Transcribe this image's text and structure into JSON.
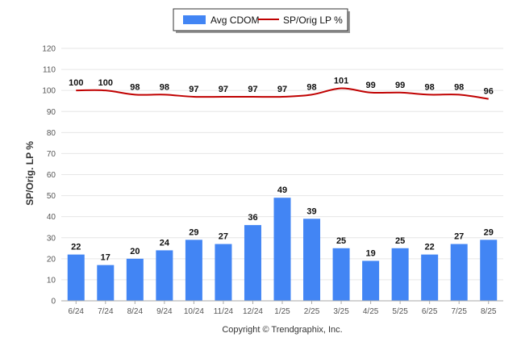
{
  "chart_data": {
    "type": "bar",
    "categories": [
      "6/24",
      "7/24",
      "8/24",
      "9/24",
      "10/24",
      "11/24",
      "12/24",
      "1/25",
      "2/25",
      "3/25",
      "4/25",
      "5/25",
      "6/25",
      "7/25",
      "8/25"
    ],
    "series": [
      {
        "name": "Avg CDOM",
        "kind": "bar",
        "color": "#4285f4",
        "values": [
          22,
          17,
          20,
          24,
          29,
          27,
          36,
          49,
          39,
          25,
          19,
          25,
          22,
          27,
          29
        ]
      },
      {
        "name": "SP/Orig LP %",
        "kind": "line",
        "color": "#c00000",
        "values": [
          100,
          100,
          98,
          98,
          97,
          97,
          97,
          97,
          98,
          101,
          99,
          99,
          98,
          98,
          96
        ]
      }
    ],
    "ylabel": "SP/Orig. LP %",
    "ylim": [
      0,
      120
    ],
    "yticks": [
      0,
      10,
      20,
      30,
      40,
      50,
      60,
      70,
      80,
      90,
      100,
      110,
      120
    ],
    "grid": true,
    "legend": "top-center",
    "copyright": "Copyright © Trendgraphix, Inc."
  }
}
